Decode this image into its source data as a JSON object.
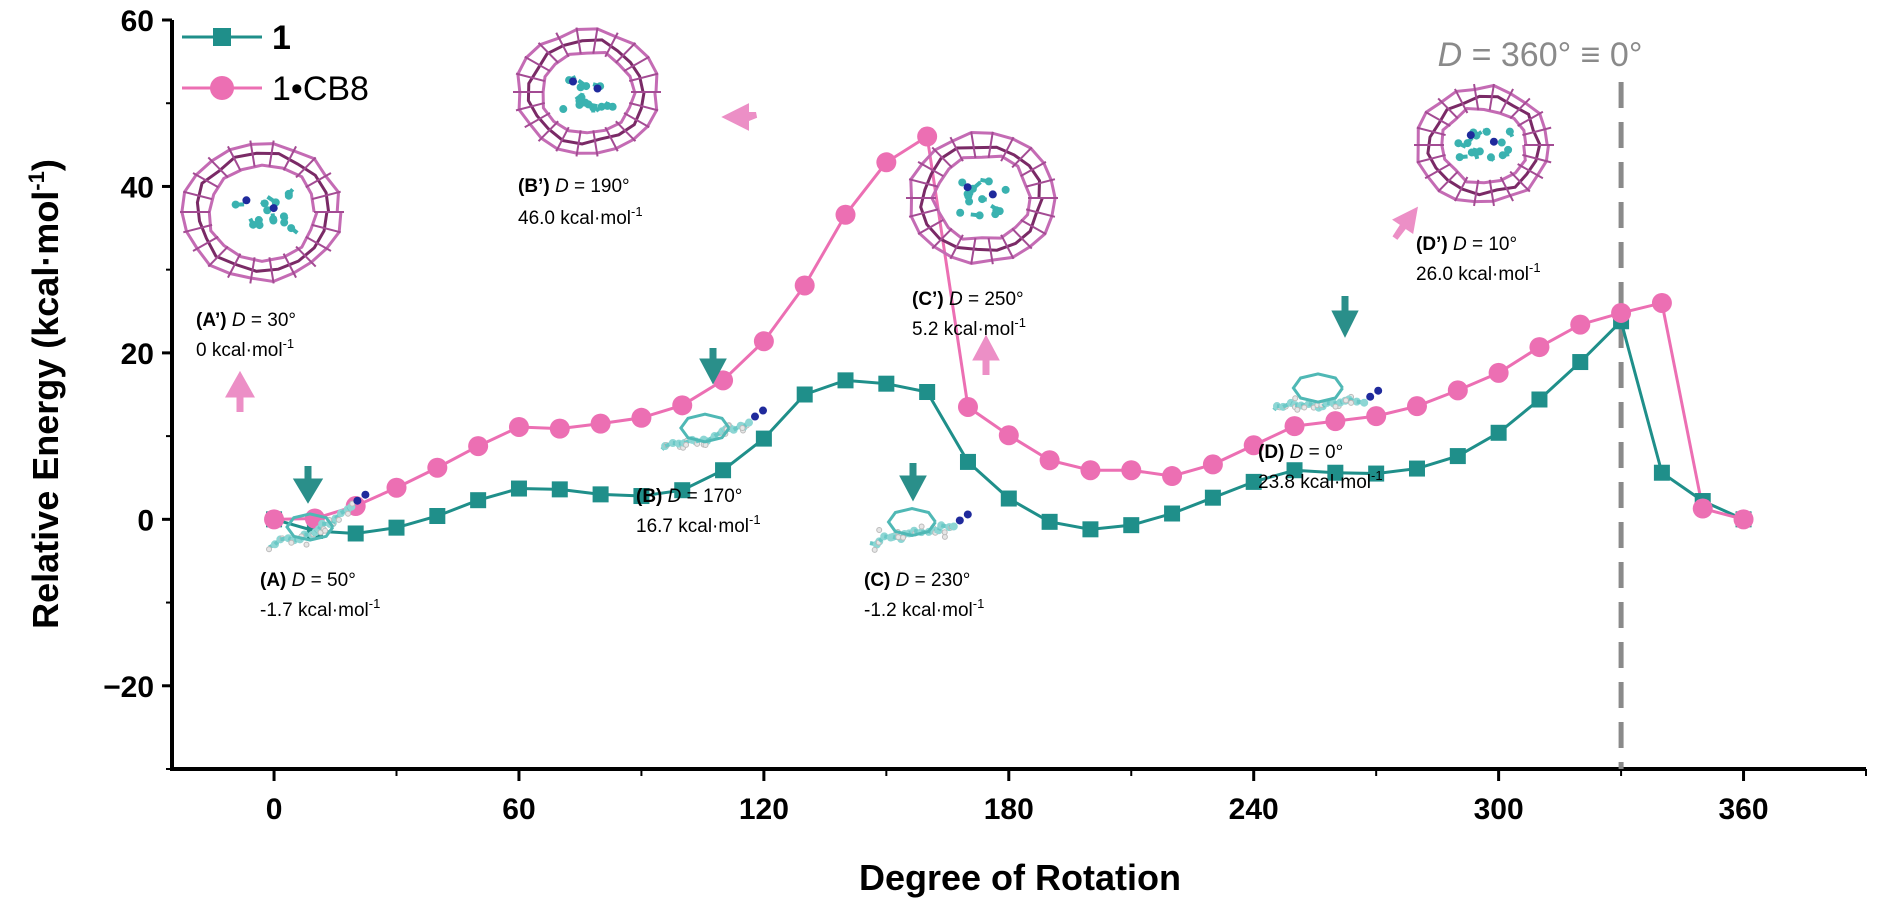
{
  "chart_data": {
    "type": "line",
    "xlabel": "Degree of Rotation",
    "ylabel": "Relative Energy (kcal·mol-1)",
    "ylabel_text": "Relative Energy (kcal·mol",
    "ylabel_sup": "-1",
    "ylabel_close": ")",
    "xlim": [
      -25,
      390
    ],
    "ylim": [
      -30,
      60
    ],
    "xticks": [
      0,
      60,
      120,
      180,
      240,
      300,
      360
    ],
    "yticks": [
      -20,
      0,
      20,
      40,
      60
    ],
    "xtick_labels": [
      "0",
      "60",
      "120",
      "180",
      "240",
      "300",
      "360"
    ],
    "ytick_labels": [
      "−20",
      "0",
      "20",
      "40",
      "60"
    ],
    "grid": false,
    "legend_position": "top-left",
    "x": [
      0,
      10,
      20,
      30,
      40,
      50,
      60,
      70,
      80,
      90,
      100,
      110,
      120,
      130,
      140,
      150,
      160,
      170,
      180,
      190,
      200,
      210,
      220,
      230,
      240,
      250,
      260,
      270,
      280,
      290,
      300,
      310,
      320,
      330,
      340,
      350,
      360
    ],
    "series": [
      {
        "name": "1",
        "color": "#1f8f8a",
        "marker": "square",
        "values": [
          0,
          -1.4,
          -1.7,
          -1.0,
          0.4,
          2.3,
          3.7,
          3.6,
          3.0,
          2.8,
          3.5,
          5.9,
          9.7,
          15.0,
          16.7,
          16.3,
          15.3,
          6.9,
          2.5,
          -0.3,
          -1.2,
          -0.7,
          0.7,
          2.6,
          4.5,
          5.9,
          5.6,
          5.5,
          6.1,
          7.6,
          10.4,
          14.4,
          18.9,
          23.8,
          5.6,
          2.2,
          0
        ]
      },
      {
        "name": "1•CB8",
        "color": "#ec6fb3",
        "marker": "circle",
        "values": [
          0,
          0.1,
          1.6,
          3.8,
          6.2,
          8.8,
          11.1,
          10.9,
          11.5,
          12.2,
          13.7,
          16.7,
          21.4,
          28.1,
          36.6,
          42.9,
          46.0,
          13.5,
          10.1,
          7.1,
          5.9,
          5.9,
          5.2,
          6.6,
          8.9,
          11.2,
          11.8,
          12.4,
          13.6,
          15.5,
          17.6,
          20.7,
          23.4,
          24.8,
          26.0,
          1.3,
          0
        ]
      }
    ],
    "reference_line": {
      "x": 330,
      "label_d": "D",
      "label_rest": " = 360° ≡ 0°",
      "color": "#8a8a8a"
    },
    "annotations": [
      {
        "id": "A-prime",
        "head": "(A’)",
        "d": "D",
        "value": " = 30°",
        "energy": "0 kcal·mol",
        "sup": "-1"
      },
      {
        "id": "B-prime",
        "head": "(B’)",
        "d": "D",
        "value": " = 190°",
        "energy": "46.0 kcal·mol",
        "sup": "-1"
      },
      {
        "id": "C-prime",
        "head": "(C’)",
        "d": "D",
        "value": " = 250°",
        "energy": "5.2 kcal·mol",
        "sup": "-1"
      },
      {
        "id": "D-prime",
        "head": "(D’)",
        "d": "D",
        "value": " = 10°",
        "energy": "26.0 kcal·mol",
        "sup": "-1"
      },
      {
        "id": "A",
        "head": "(A)",
        "d": "D",
        "value": " = 50°",
        "energy": "-1.7 kcal·mol",
        "sup": "-1"
      },
      {
        "id": "B",
        "head": "(B)",
        "d": "D",
        "value": " = 170°",
        "energy": "16.7 kcal·mol",
        "sup": "-1"
      },
      {
        "id": "C",
        "head": "(C)",
        "d": "D",
        "value": " = 230°",
        "energy": "-1.2 kcal·mol",
        "sup": "-1"
      },
      {
        "id": "D",
        "head": "(D)",
        "d": "D",
        "value": " = 0°",
        "energy": "23.8 kcal·mol",
        "sup": "-1"
      }
    ],
    "structure_images": [
      {
        "id": "cb8-A-prime",
        "icon": "cb8-host-guest-structure-icon"
      },
      {
        "id": "cb8-B-prime",
        "icon": "cb8-host-guest-structure-icon"
      },
      {
        "id": "cb8-C-prime",
        "icon": "cb8-host-guest-structure-icon"
      },
      {
        "id": "cb8-D-prime",
        "icon": "cb8-host-guest-structure-icon"
      },
      {
        "id": "mol-A",
        "icon": "molecule-structure-icon"
      },
      {
        "id": "mol-B",
        "icon": "molecule-structure-icon"
      },
      {
        "id": "mol-C",
        "icon": "molecule-structure-icon"
      },
      {
        "id": "mol-D",
        "icon": "molecule-structure-icon"
      }
    ]
  }
}
